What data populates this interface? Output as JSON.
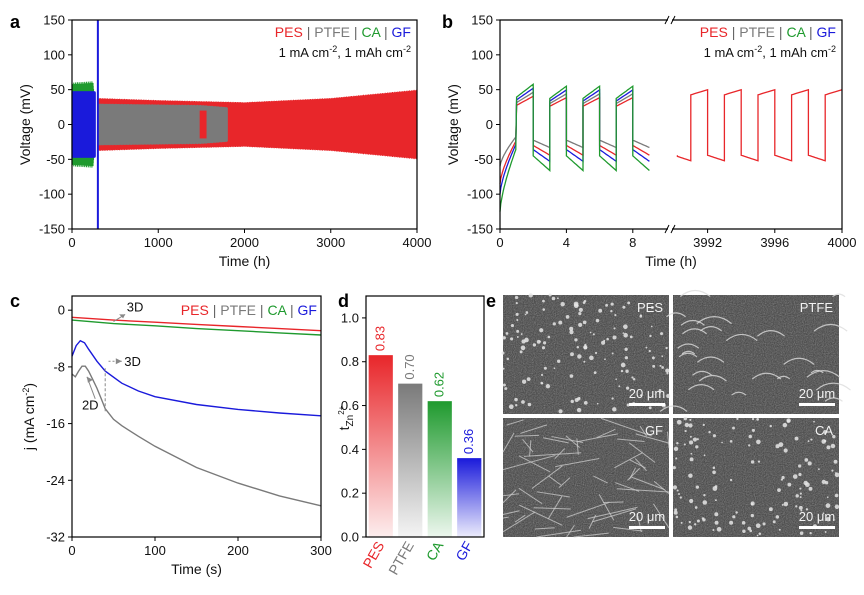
{
  "colors": {
    "PES": "#e8262a",
    "PTFE": "#7a7a7a",
    "CA": "#1f9a2e",
    "GF": "#1a1adb"
  },
  "legend_sep": "|",
  "panels": {
    "a": {
      "letter": "a"
    },
    "b": {
      "letter": "b"
    },
    "c": {
      "letter": "c"
    },
    "d": {
      "letter": "d"
    },
    "e": {
      "letter": "e"
    }
  },
  "chart_data": [
    {
      "panel": "a",
      "type": "line",
      "xlabel": "Time (h)",
      "ylabel": "Voltage (mV)",
      "xlim": [
        0,
        4000
      ],
      "ylim": [
        -150,
        150
      ],
      "xticks": [
        0,
        1000,
        2000,
        3000,
        4000
      ],
      "yticks": [
        -150,
        -100,
        -50,
        0,
        50,
        100,
        150
      ],
      "legend": [
        "PES",
        "PTFE",
        "CA",
        "GF"
      ],
      "condition_parts": [
        "1 mA cm",
        "-2",
        ", 1 mAh cm",
        "-2"
      ],
      "series": [
        {
          "name": "PES",
          "envelope": [
            [
              300,
              38
            ],
            [
              1000,
              35
            ],
            [
              2000,
              32
            ],
            [
              3000,
              38
            ],
            [
              4000,
              50
            ]
          ]
        },
        {
          "name": "PTFE",
          "envelope": [
            [
              300,
              30
            ],
            [
              1500,
              28
            ],
            [
              1800,
              25
            ]
          ]
        },
        {
          "name": "CA",
          "envelope": [
            [
              0,
              60
            ],
            [
              250,
              62
            ]
          ]
        },
        {
          "name": "GF",
          "envelope": [
            [
              0,
              48
            ],
            [
              270,
              48
            ]
          ],
          "spike": [
            300,
            150,
            -150
          ]
        }
      ]
    },
    {
      "panel": "b",
      "type": "line",
      "xlabel": "Time (h)",
      "ylabel": "Voltage (mV)",
      "ylim": [
        -150,
        150
      ],
      "yticks": [
        -150,
        -100,
        -50,
        0,
        50,
        100,
        150
      ],
      "xbreak": true,
      "left_xlim": [
        0,
        10
      ],
      "left_xticks": [
        0,
        4,
        8
      ],
      "right_xlim": [
        3990,
        4000
      ],
      "right_xticks": [
        3992,
        3996,
        4000
      ],
      "legend": [
        "PES",
        "PTFE",
        "CA",
        "GF"
      ],
      "condition_parts": [
        "1 mA cm",
        "-2",
        ", 1 mAh cm",
        "-2"
      ],
      "series": [
        {
          "name": "PES",
          "first_dip": -85,
          "plateau_pos": 35,
          "plateau_neg": -40,
          "late_pos": 50,
          "late_neg": -52
        },
        {
          "name": "PTFE",
          "first_dip": -60,
          "plateau_pos": 40,
          "plateau_neg": -30
        },
        {
          "name": "CA",
          "first_dip": -125,
          "plateau_pos": 50,
          "plateau_neg": -60
        },
        {
          "name": "GF",
          "first_dip": -100,
          "plateau_pos": 45,
          "plateau_neg": -48
        }
      ]
    },
    {
      "panel": "c",
      "type": "line",
      "xlabel": "Time (s)",
      "ylabel_parts": [
        "j (mA cm",
        "-2",
        ")"
      ],
      "xlim": [
        0,
        300
      ],
      "ylim": [
        -32,
        2
      ],
      "xticks": [
        0,
        100,
        200,
        300
      ],
      "yticks": [
        0,
        -8,
        -16,
        -24,
        -32
      ],
      "legend": [
        "PES",
        "PTFE",
        "CA",
        "GF"
      ],
      "annotations": [
        "3D",
        "3D",
        "2D"
      ],
      "series": [
        {
          "name": "PES",
          "x": [
            0,
            50,
            100,
            150,
            200,
            250,
            300
          ],
          "y": [
            -1.0,
            -1.4,
            -1.7,
            -2.0,
            -2.3,
            -2.6,
            -2.9
          ]
        },
        {
          "name": "CA",
          "x": [
            0,
            50,
            100,
            150,
            200,
            250,
            300
          ],
          "y": [
            -1.4,
            -1.9,
            -2.2,
            -2.6,
            -2.9,
            -3.2,
            -3.5
          ]
        },
        {
          "name": "GF",
          "x": [
            0,
            5,
            10,
            15,
            20,
            30,
            40,
            60,
            80,
            100,
            150,
            200,
            250,
            300
          ],
          "y": [
            -6.5,
            -5.0,
            -4.3,
            -4.6,
            -5.5,
            -7.2,
            -8.6,
            -10.3,
            -11.4,
            -12.2,
            -13.3,
            -14.0,
            -14.5,
            -14.9
          ]
        },
        {
          "name": "PTFE",
          "x": [
            0,
            4,
            8,
            12,
            16,
            20,
            25,
            30,
            35,
            40,
            50,
            60,
            80,
            100,
            150,
            200,
            250,
            300
          ],
          "y": [
            -9.0,
            -9.4,
            -8.6,
            -7.9,
            -7.9,
            -8.6,
            -9.8,
            -11.0,
            -12.4,
            -13.9,
            -15.4,
            -16.3,
            -17.8,
            -19.2,
            -22.2,
            -24.4,
            -26.2,
            -27.6
          ]
        }
      ]
    },
    {
      "panel": "d",
      "type": "bar",
      "ylabel_main": "t",
      "ylabel_sub": "Zn",
      "ylabel_sup": "2+",
      "ylim": [
        0,
        1.1
      ],
      "yticks": [
        0.0,
        0.2,
        0.4,
        0.6,
        0.8,
        1.0
      ],
      "categories": [
        "PES",
        "PTFE",
        "CA",
        "GF"
      ],
      "values": [
        0.83,
        0.7,
        0.62,
        0.36
      ],
      "value_labels": [
        "0.83",
        "0.70",
        "0.62",
        "0.36"
      ]
    }
  ],
  "sem": {
    "tiles": [
      {
        "label": "PES",
        "scale": "20 μm"
      },
      {
        "label": "PTFE",
        "scale": "20 μm"
      },
      {
        "label": "GF",
        "scale": "20 μm"
      },
      {
        "label": "CA",
        "scale": "20 μm"
      }
    ]
  }
}
